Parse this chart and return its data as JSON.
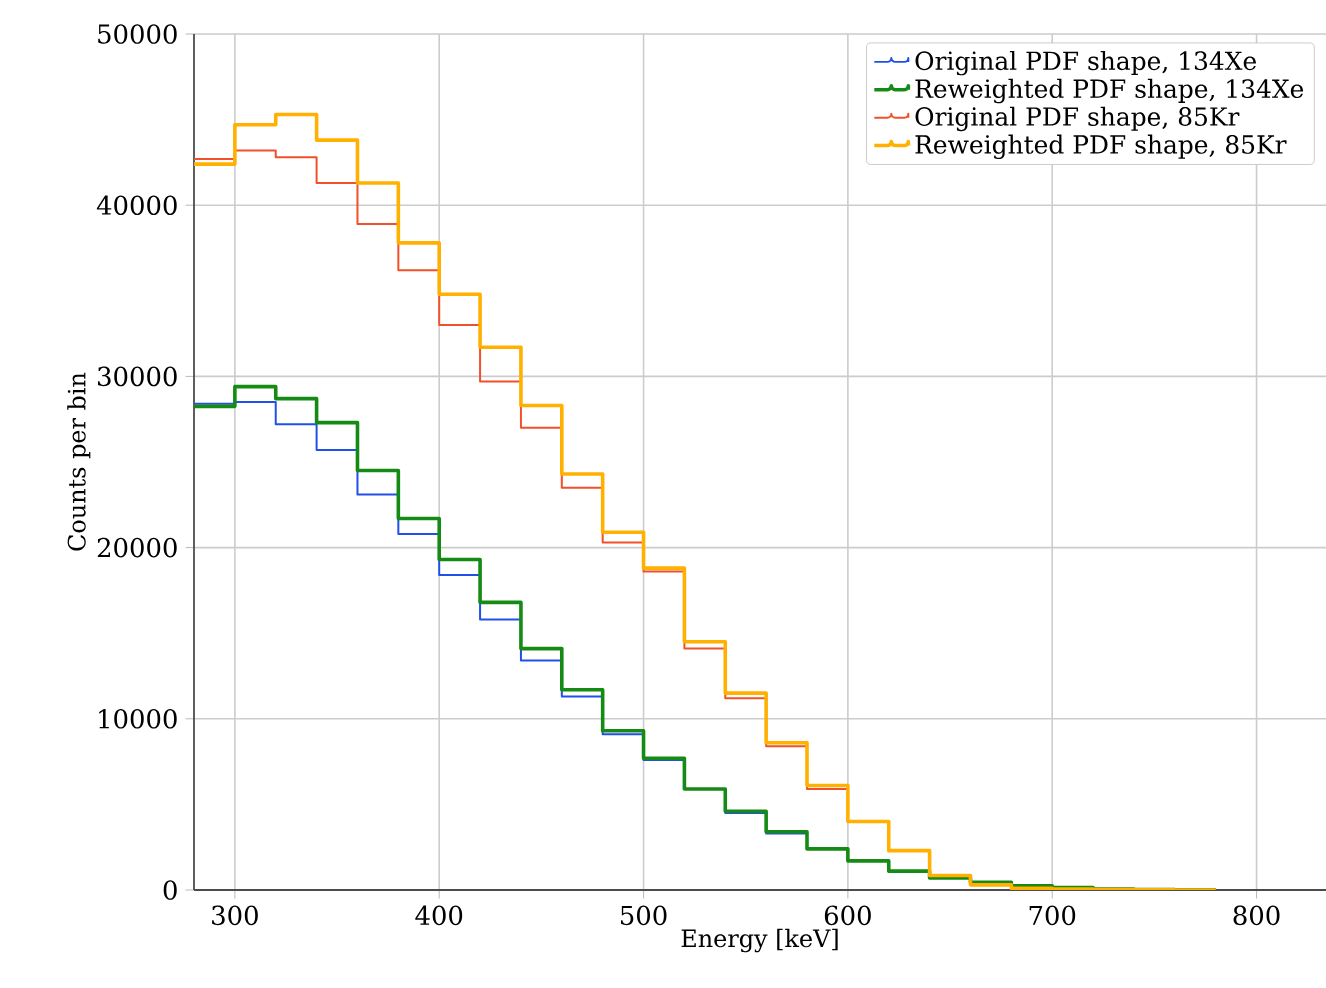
{
  "chart_data": {
    "type": "histogram",
    "xlabel": "Energy [keV]",
    "ylabel": "Counts per bin",
    "bins": [
      280,
      300,
      320,
      340,
      360,
      380,
      400,
      420,
      440,
      460,
      480,
      500,
      520,
      540,
      560,
      580,
      600,
      620,
      640,
      660,
      680,
      700,
      720,
      740,
      760,
      780
    ],
    "series": [
      {
        "name": "Original PDF shape, 134Xe",
        "color": "#2050e8",
        "values": [
          28400,
          28500,
          27200,
          25700,
          23100,
          20800,
          18400,
          15800,
          13400,
          11300,
          9100,
          7600,
          5900,
          4500,
          3300,
          2400,
          1700,
          1100,
          700,
          400,
          250,
          120,
          60,
          30,
          10
        ]
      },
      {
        "name": "Reweighted PDF shape, 134Xe",
        "color": "#158a15",
        "values": [
          28250,
          29400,
          28700,
          27300,
          24500,
          21700,
          19300,
          16800,
          14100,
          11700,
          9300,
          7700,
          5900,
          4600,
          3400,
          2400,
          1700,
          1100,
          700,
          450,
          250,
          150,
          60,
          30,
          10
        ]
      },
      {
        "name": "Original PDF shape, 85Kr",
        "color": "#f0502a",
        "values": [
          42700,
          43200,
          42800,
          41300,
          38900,
          36200,
          33000,
          29700,
          27000,
          23500,
          20300,
          18600,
          14100,
          11200,
          8400,
          5900,
          4000,
          2300,
          850,
          300,
          100,
          50,
          20,
          10,
          0
        ]
      },
      {
        "name": "Reweighted PDF shape, 85Kr",
        "color": "#ffb000",
        "values": [
          42400,
          44700,
          45300,
          43800,
          41300,
          37800,
          34800,
          31700,
          28300,
          24300,
          20900,
          18800,
          14500,
          11500,
          8600,
          6100,
          4000,
          2300,
          850,
          300,
          100,
          50,
          20,
          10,
          0
        ]
      }
    ],
    "xlim": [
      280,
      834
    ],
    "ylim": [
      0,
      50000
    ],
    "xticks": [
      300,
      400,
      500,
      600,
      700,
      800
    ],
    "yticks": [
      0,
      10000,
      20000,
      30000,
      40000,
      50000
    ],
    "grid": true,
    "legend": "top right"
  }
}
